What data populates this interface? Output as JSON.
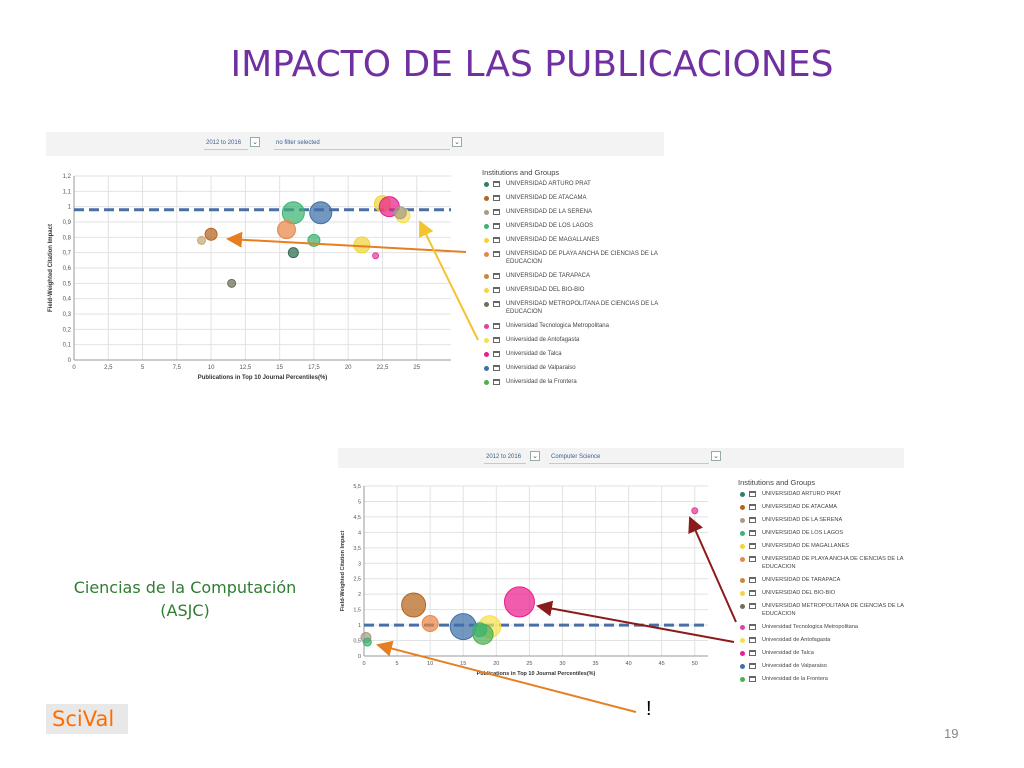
{
  "slide": {
    "title": "IMPACTO DE LAS PUBLICACIONES",
    "caption_line1": "Ciencias de la Computación",
    "caption_line2": "(ASJC)",
    "logo": "SciVal",
    "exclamation": "!",
    "page_number": "19"
  },
  "colors": {
    "title": "#7030a0",
    "caption": "#2e7d32",
    "logo": "#ff6d00",
    "reference_line": "#4a6fa5",
    "arrow_orange": "#e67e22",
    "arrow_yellow": "#f4c430",
    "arrow_darkred": "#8b1a1a"
  },
  "institutions": [
    {
      "name": "UNIVERSIDAD ARTURO PRAT",
      "color": "#2e7d6e"
    },
    {
      "name": "UNIVERSIDAD DE ATACAMA",
      "color": "#b5651d"
    },
    {
      "name": "UNIVERSIDAD DE LA SERENA",
      "color": "#a89a88"
    },
    {
      "name": "UNIVERSIDAD DE LOS LAGOS",
      "color": "#3cb371"
    },
    {
      "name": "UNIVERSIDAD DE MAGALLANES",
      "color": "#f0d43a"
    },
    {
      "name": "UNIVERSIDAD DE PLAYA ANCHA DE CIENCIAS DE LA EDUCACION",
      "color": "#e8874a"
    },
    {
      "name": "UNIVERSIDAD DE TARAPACA",
      "color": "#c58a3a"
    },
    {
      "name": "UNIVERSIDAD DEL BIO-BIO",
      "color": "#f5d547"
    },
    {
      "name": "UNIVERSIDAD METROPOLITANA DE CIENCIAS DE LA EDUCACION",
      "color": "#6e6e5a"
    },
    {
      "name": "Universidad Tecnologica Metropolitana",
      "color": "#e040a0"
    },
    {
      "name": "Universidad de Antofagasta",
      "color": "#f5e050"
    },
    {
      "name": "Universidad de Talca",
      "color": "#e91e8c"
    },
    {
      "name": "Universidad de Valparaiso",
      "color": "#3f6fa8"
    },
    {
      "name": "Universidad de la Frontera",
      "color": "#4caf50"
    }
  ],
  "chart_data": [
    {
      "type": "scatter",
      "filters": {
        "period": "2012 to 2016",
        "filter": "no filter selected"
      },
      "legend_title": "Institutions and Groups",
      "xlabel": "Publications in Top 10 Journal Percentiles(%)",
      "ylabel": "Field-Weighted Citation Impact",
      "xlim": [
        0,
        27.5
      ],
      "ylim": [
        0,
        1.2
      ],
      "xticks": [
        "0",
        "2,5",
        "5",
        "7,5",
        "10",
        "12,5",
        "15",
        "17,5",
        "20",
        "22,5",
        "25"
      ],
      "xtick_values": [
        0,
        2.5,
        5,
        7.5,
        10,
        12.5,
        15,
        17.5,
        20,
        22.5,
        25
      ],
      "yticks": [
        "0",
        "0,1",
        "0,2",
        "0,3",
        "0,4",
        "0,5",
        "0,6",
        "0,7",
        "0,8",
        "0,9",
        "1",
        "1,1",
        "1,2"
      ],
      "ytick_values": [
        0,
        0.1,
        0.2,
        0.3,
        0.4,
        0.5,
        0.6,
        0.7,
        0.8,
        0.9,
        1.0,
        1.1,
        1.2
      ],
      "reference_y": 0.98,
      "points": [
        {
          "x": 16.0,
          "y": 0.96,
          "r": 11,
          "color": "#3cb371"
        },
        {
          "x": 18.0,
          "y": 0.96,
          "r": 11,
          "color": "#3f6fa8"
        },
        {
          "x": 22.5,
          "y": 1.02,
          "r": 8,
          "color": "#f0d43a"
        },
        {
          "x": 23.0,
          "y": 1.0,
          "r": 10,
          "color": "#e91e8c"
        },
        {
          "x": 24.0,
          "y": 0.94,
          "r": 7,
          "color": "#f5e050"
        },
        {
          "x": 23.8,
          "y": 0.96,
          "r": 6,
          "color": "#a89a88"
        },
        {
          "x": 15.5,
          "y": 0.85,
          "r": 9,
          "color": "#e8874a"
        },
        {
          "x": 17.5,
          "y": 0.78,
          "r": 6,
          "color": "#3cb371"
        },
        {
          "x": 16.0,
          "y": 0.7,
          "r": 5,
          "color": "#2e6b4e"
        },
        {
          "x": 21.0,
          "y": 0.75,
          "r": 8,
          "color": "#f0d43a"
        },
        {
          "x": 22.0,
          "y": 0.68,
          "r": 3,
          "color": "#e040a0"
        },
        {
          "x": 9.3,
          "y": 0.78,
          "r": 4,
          "color": "#c8a878"
        },
        {
          "x": 10.0,
          "y": 0.82,
          "r": 6,
          "color": "#b5651d"
        },
        {
          "x": 11.5,
          "y": 0.5,
          "r": 4,
          "color": "#6e6e5a"
        }
      ]
    },
    {
      "type": "scatter",
      "filters": {
        "period": "2012 to 2016",
        "filter": "Computer Science"
      },
      "legend_title": "Institutions and Groups",
      "xlabel": "Publications in Top 10 Journal Percentiles(%)",
      "ylabel": "Field-Weighted Citation Impact",
      "xlim": [
        0,
        52
      ],
      "ylim": [
        0,
        5.5
      ],
      "xticks": [
        "0",
        "5",
        "10",
        "15",
        "20",
        "25",
        "30",
        "35",
        "40",
        "45",
        "50"
      ],
      "xtick_values": [
        0,
        5,
        10,
        15,
        20,
        25,
        30,
        35,
        40,
        45,
        50
      ],
      "yticks": [
        "0",
        "0,5",
        "1",
        "1,5",
        "2",
        "2,5",
        "3",
        "3,5",
        "4",
        "4,5",
        "5",
        "5,5"
      ],
      "ytick_values": [
        0,
        0.5,
        1,
        1.5,
        2,
        2.5,
        3,
        3.5,
        4,
        4.5,
        5,
        5.5
      ],
      "reference_y": 1.0,
      "points": [
        {
          "x": 50.0,
          "y": 4.7,
          "r": 3,
          "color": "#e040a0"
        },
        {
          "x": 23.5,
          "y": 1.75,
          "r": 15,
          "color": "#e91e8c"
        },
        {
          "x": 7.5,
          "y": 1.65,
          "r": 12,
          "color": "#b5651d"
        },
        {
          "x": 10.0,
          "y": 1.05,
          "r": 8,
          "color": "#e8874a"
        },
        {
          "x": 15.0,
          "y": 0.95,
          "r": 13,
          "color": "#3f6fa8"
        },
        {
          "x": 19.0,
          "y": 0.95,
          "r": 11,
          "color": "#f5e050"
        },
        {
          "x": 18.0,
          "y": 0.7,
          "r": 10,
          "color": "#4caf50"
        },
        {
          "x": 17.5,
          "y": 0.85,
          "r": 7,
          "color": "#3cb371"
        },
        {
          "x": 0.3,
          "y": 0.6,
          "r": 5,
          "color": "#a89a88"
        },
        {
          "x": 0.5,
          "y": 0.45,
          "r": 4,
          "color": "#3cb371"
        }
      ]
    }
  ]
}
